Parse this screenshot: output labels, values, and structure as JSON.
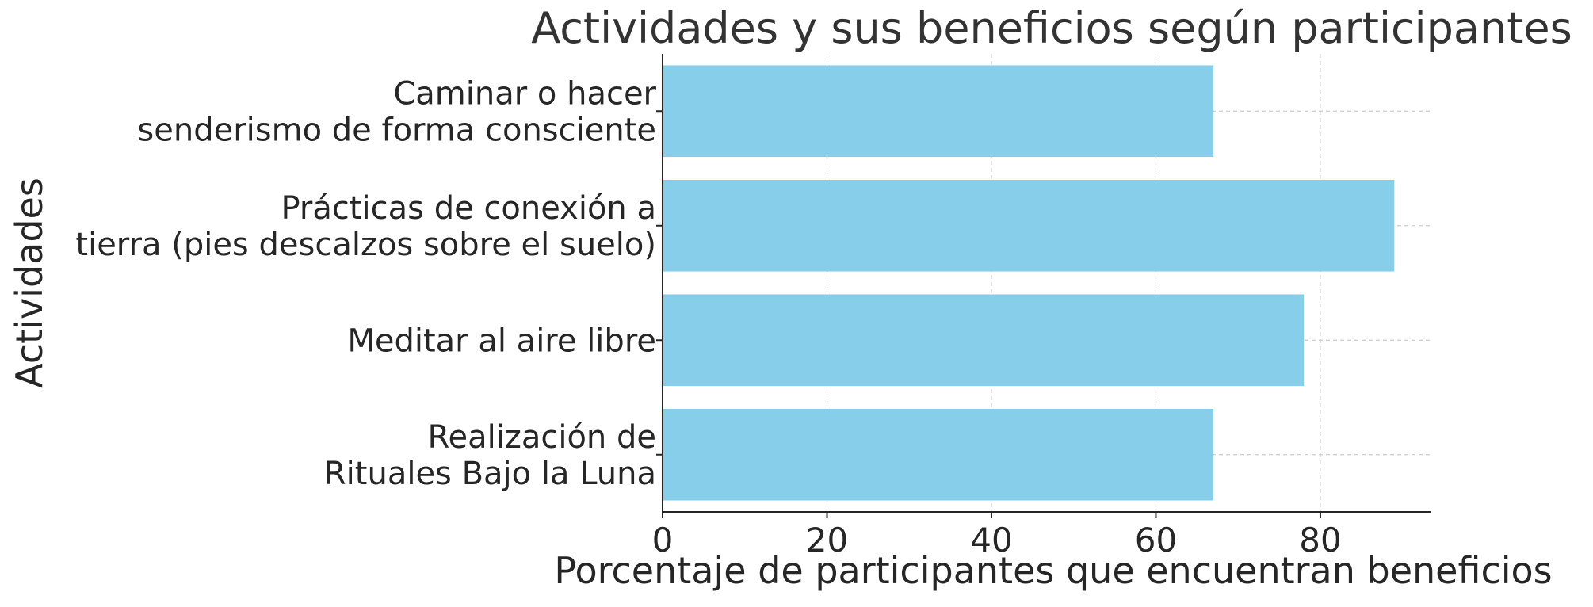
{
  "chart_data": {
    "type": "bar",
    "orientation": "horizontal",
    "title": "Actividades y sus beneficios según participantes",
    "xlabel": "Porcentaje de participantes que encuentran beneficios",
    "ylabel": "Actividades",
    "categories": [
      [
        "Caminar o hacer",
        "senderismo de forma consciente"
      ],
      [
        "Prácticas de conexión a",
        "tierra (pies descalzos sobre el suelo)"
      ],
      [
        "Meditar al aire libre"
      ],
      [
        "Realización de",
        "Rituales Bajo la Luna"
      ]
    ],
    "values": [
      67,
      89,
      78,
      67
    ],
    "xlim": [
      0,
      93.5
    ],
    "xticks": [
      0,
      20,
      40,
      60,
      80
    ],
    "grid": true,
    "colors": {
      "bar": "#87ceeb",
      "axis": "#262626",
      "grid": "#cccccc",
      "text": "#262626",
      "title": "#333333"
    }
  }
}
